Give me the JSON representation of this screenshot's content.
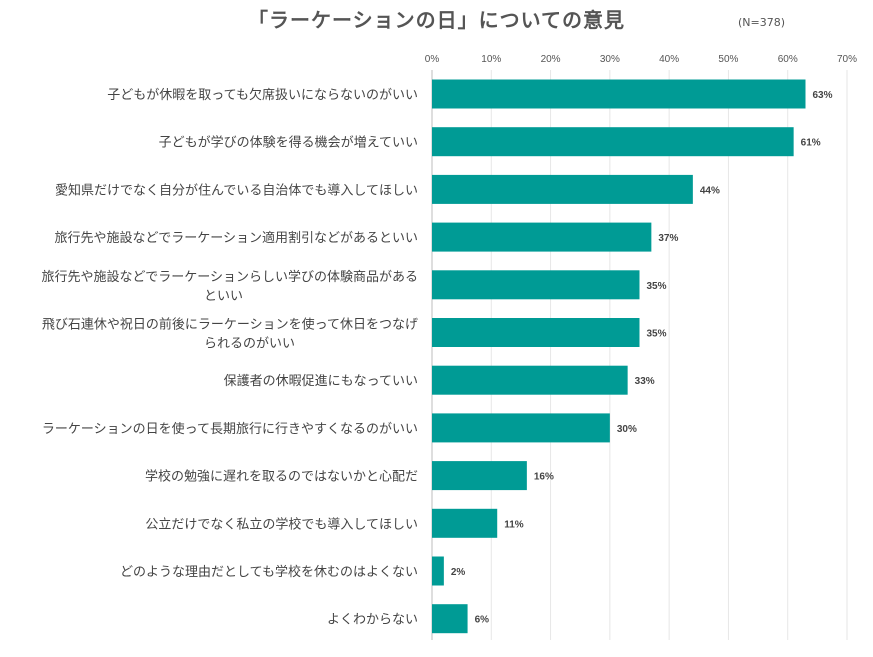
{
  "chart_data": {
    "type": "bar",
    "orientation": "horizontal",
    "title": "「ラーケーションの日」についての意見",
    "note": "(N=378)",
    "categories": [
      "子どもが休暇を取っても欠席扱いにならないのがいい",
      "子どもが学びの体験を得る機会が増えていい",
      "愛知県だけでなく自分が住んでいる自治体でも導入してほしい",
      "旅行先や施設などでラーケーション適用割引などがあるといい",
      "旅行先や施設などでラーケーションらしい学びの体験商品があるといい",
      "飛び石連休や祝日の前後にラーケーションを使って休日をつなげられるのがいい",
      "保護者の休暇促進にもなっていい",
      "ラーケーションの日を使って長期旅行に行きやすくなるのがいい",
      "学校の勉強に遅れを取るのではないかと心配だ",
      "公立だけでなく私立の学校でも導入してほしい",
      "どのような理由だとしても学校を休むのはよくない",
      "よくわからない"
    ],
    "category_lines": [
      [
        "子どもが休暇を取っても欠席扱いにならないのがいい"
      ],
      [
        "子どもが学びの体験を得る機会が増えていい"
      ],
      [
        "愛知県だけでなく自分が住んでいる自治体でも導入してほしい"
      ],
      [
        "旅行先や施設などでラーケーション適用割引などがあるといい"
      ],
      [
        "旅行先や施設などでラーケーションらしい学びの体験商品がある",
        "といい"
      ],
      [
        "飛び石連休や祝日の前後にラーケーションを使って休日をつなげ",
        "られるのがいい"
      ],
      [
        "保護者の休暇促進にもなっていい"
      ],
      [
        "ラーケーションの日を使って長期旅行に行きやすくなるのがいい"
      ],
      [
        "学校の勉強に遅れを取るのではないかと心配だ"
      ],
      [
        "公立だけでなく私立の学校でも導入してほしい"
      ],
      [
        "どのような理由だとしても学校を休むのはよくない"
      ],
      [
        "よくわからない"
      ]
    ],
    "values": [
      63,
      61,
      44,
      37,
      35,
      35,
      33,
      30,
      16,
      11,
      2,
      6
    ],
    "value_labels": [
      "63%",
      "61%",
      "44%",
      "37%",
      "35%",
      "35%",
      "33%",
      "30%",
      "16%",
      "11%",
      "2%",
      "6%"
    ],
    "x_ticks": [
      0,
      10,
      20,
      30,
      40,
      50,
      60,
      70
    ],
    "x_tick_labels": [
      "0%",
      "10%",
      "20%",
      "30%",
      "40%",
      "50%",
      "60%",
      "70%"
    ],
    "xlim": [
      0,
      70
    ],
    "grid": true,
    "axis_position": "top",
    "bar_color": "#009b95"
  }
}
